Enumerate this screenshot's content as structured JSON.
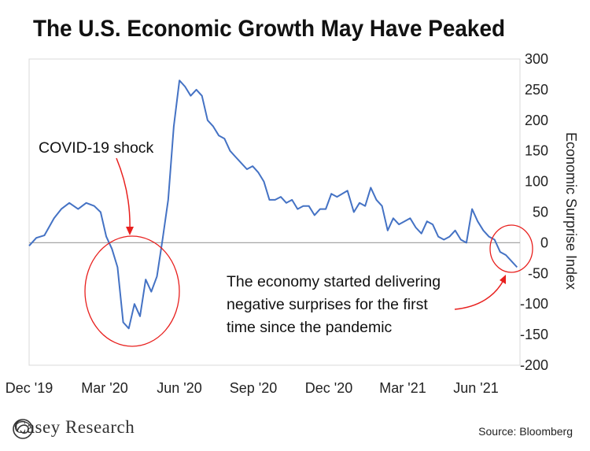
{
  "title": "The U.S. Economic Growth May Have Peaked",
  "source": "Source: Bloomberg",
  "logo": {
    "text": "Casey Research",
    "icon": "casey-research-swirl-logo"
  },
  "colors": {
    "line": "#4472C4",
    "annotation": "#E8201E",
    "zero_line": "#A6A6A6",
    "border": "#D9D9D9"
  },
  "chart_data": {
    "type": "line",
    "title": "The U.S. Economic Growth May Have Peaked",
    "ylabel": "Economic Surprise Index",
    "y_axis_side": "right",
    "ylim": [
      -200,
      300
    ],
    "yticks": [
      300,
      250,
      200,
      150,
      100,
      50,
      0,
      -50,
      -100,
      -150,
      -200
    ],
    "xtick_labels": [
      "Dec '19",
      "Mar '20",
      "Jun '20",
      "Sep '20",
      "Dec '20",
      "Mar '21",
      "Jun '21"
    ],
    "grid": false,
    "legend": "none",
    "series": [
      {
        "x": [
          "2019-12-01",
          "2019-12-10",
          "2019-12-20",
          "2020-01-01",
          "2020-01-10",
          "2020-01-20",
          "2020-01-31",
          "2020-02-10",
          "2020-02-20",
          "2020-02-28",
          "2020-03-06",
          "2020-03-13",
          "2020-03-20",
          "2020-03-27",
          "2020-04-03",
          "2020-04-10",
          "2020-04-17",
          "2020-04-24",
          "2020-05-01",
          "2020-05-08",
          "2020-05-15",
          "2020-05-22",
          "2020-05-29",
          "2020-06-05",
          "2020-06-12",
          "2020-06-19",
          "2020-06-26",
          "2020-07-03",
          "2020-07-10",
          "2020-07-17",
          "2020-07-24",
          "2020-07-31",
          "2020-08-07",
          "2020-08-14",
          "2020-08-21",
          "2020-08-28",
          "2020-09-04",
          "2020-09-11",
          "2020-09-18",
          "2020-09-25",
          "2020-10-02",
          "2020-10-09",
          "2020-10-16",
          "2020-10-23",
          "2020-10-30",
          "2020-11-06",
          "2020-11-13",
          "2020-11-20",
          "2020-11-27",
          "2020-12-04",
          "2020-12-11",
          "2020-12-18",
          "2020-12-31",
          "2021-01-08",
          "2021-01-15",
          "2021-01-22",
          "2021-01-29",
          "2021-02-05",
          "2021-02-12",
          "2021-02-19",
          "2021-02-26",
          "2021-03-05",
          "2021-03-12",
          "2021-03-19",
          "2021-03-26",
          "2021-04-02",
          "2021-04-09",
          "2021-04-16",
          "2021-04-23",
          "2021-04-30",
          "2021-05-07",
          "2021-05-14",
          "2021-05-21",
          "2021-05-28",
          "2021-06-04",
          "2021-06-11",
          "2021-06-18",
          "2021-06-25",
          "2021-07-02",
          "2021-07-09",
          "2021-07-16",
          "2021-07-23",
          "2021-07-30"
        ],
        "values": [
          -5,
          8,
          12,
          40,
          55,
          65,
          55,
          65,
          60,
          50,
          10,
          -10,
          -40,
          -130,
          -140,
          -100,
          -120,
          -60,
          -80,
          -55,
          5,
          70,
          190,
          265,
          255,
          240,
          250,
          240,
          200,
          190,
          175,
          170,
          150,
          140,
          130,
          120,
          125,
          115,
          100,
          70,
          70,
          75,
          65,
          70,
          55,
          60,
          60,
          45,
          55,
          55,
          80,
          75,
          85,
          50,
          65,
          60,
          90,
          70,
          60,
          20,
          40,
          30,
          35,
          40,
          25,
          15,
          35,
          30,
          10,
          5,
          10,
          20,
          5,
          0,
          55,
          35,
          20,
          10,
          5,
          -15,
          -20,
          -30,
          -40
        ]
      }
    ],
    "annotations": [
      {
        "id": "covid",
        "text": "COVID-19 shock"
      },
      {
        "id": "negative",
        "lines": [
          "The economy started delivering",
          "negative surprises for the first",
          "time since the pandemic"
        ]
      }
    ]
  }
}
